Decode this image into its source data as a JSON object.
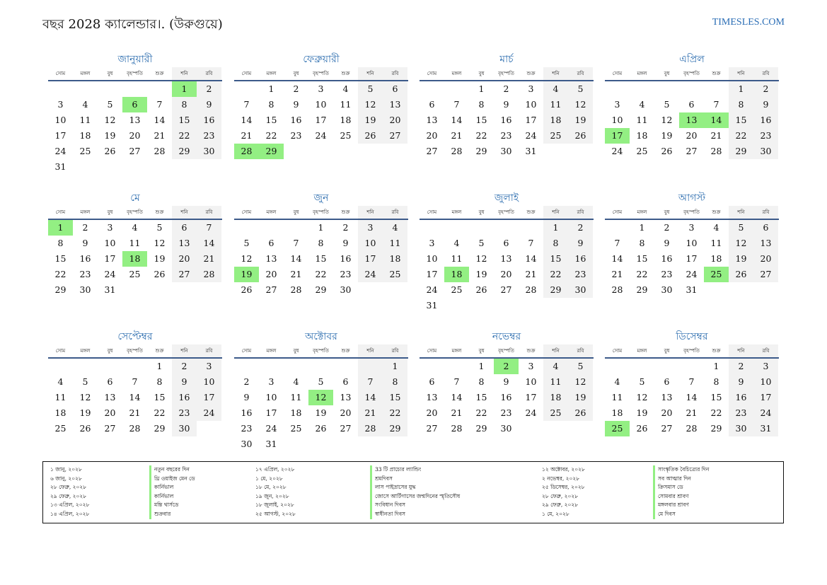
{
  "title": "বছর 2028 ক্যালেন্ডার।. (উরুগুয়ে)",
  "site": "TIMESLES.COM",
  "weekdays": [
    "সোম",
    "মঙ্গল",
    "বুধ",
    "বৃহস্পতি",
    "শুক্র",
    "শনি",
    "রবি"
  ],
  "colors": {
    "accent": "#2f6fb0",
    "holiday": "#93ef83",
    "weekend": "#f2f2f2"
  },
  "months": [
    {
      "name": "জানুয়ারী",
      "offset": 5,
      "days": 31,
      "holidays": [
        1,
        6
      ]
    },
    {
      "name": "ফেব্রুয়ারী",
      "offset": 1,
      "days": 29,
      "holidays": [
        28,
        29
      ]
    },
    {
      "name": "মার্চ",
      "offset": 2,
      "days": 31,
      "holidays": []
    },
    {
      "name": "এপ্রিল",
      "offset": 5,
      "days": 30,
      "holidays": [
        13,
        14,
        17
      ]
    },
    {
      "name": "মে",
      "offset": 0,
      "days": 31,
      "holidays": [
        1,
        18
      ]
    },
    {
      "name": "জুন",
      "offset": 3,
      "days": 30,
      "holidays": [
        19
      ]
    },
    {
      "name": "জুলাই",
      "offset": 5,
      "days": 31,
      "holidays": [
        18
      ]
    },
    {
      "name": "আগস্ট",
      "offset": 1,
      "days": 31,
      "holidays": [
        25
      ]
    },
    {
      "name": "সেপ্টেম্বর",
      "offset": 4,
      "days": 30,
      "holidays": []
    },
    {
      "name": "অক্টোবর",
      "offset": 6,
      "days": 31,
      "holidays": [
        12
      ]
    },
    {
      "name": "নভেম্বর",
      "offset": 2,
      "days": 30,
      "holidays": [
        2
      ]
    },
    {
      "name": "ডিসেম্বর",
      "offset": 4,
      "days": 31,
      "holidays": [
        25
      ]
    }
  ],
  "legend": [
    [
      {
        "date": "১ জানু, ২০২৮",
        "name": "নতুন বছরের দিন"
      },
      {
        "date": "৬ জানু, ২০২৮",
        "name": "থ্রি ওয়াইজ মেন ডে"
      },
      {
        "date": "২৮ ফেব্রু, ২০২৮",
        "name": "কার্নিভাল"
      },
      {
        "date": "২৯ ফেব্রু, ২০২৮",
        "name": "কার্নিভাল"
      },
      {
        "date": "১৩ এপ্রিল, ২০২৮",
        "name": "মন্তি থার্সডে"
      },
      {
        "date": "১৪ এপ্রিল, ২০২৮",
        "name": "শুক্রবার"
      }
    ],
    [
      {
        "date": "১৭ এপ্রিল, ২০২৮",
        "name": "33 টি প্রাচ্যের ল্যান্ডিং"
      },
      {
        "date": "১ মে, ২০২৮",
        "name": "শ্রমদিবস"
      },
      {
        "date": "১৮ মে, ২০২৮",
        "name": "লাস পাইদ্রাসের যুদ্ধ"
      },
      {
        "date": "১৯ জুন, ২০২৮",
        "name": "জোসে আর্টিগাসের জন্মদিনের স্মৃতিসৌধ"
      },
      {
        "date": "১৮ জুলাই, ২০২৮",
        "name": "সংবিধান দিবস"
      },
      {
        "date": "২৫ আগস্ট, ২০২৮",
        "name": "স্বাধীনতা দিবস"
      }
    ],
    [
      {
        "date": "১২ অক্টোবর, ২০২৮",
        "name": "সাংস্কৃতিক বৈচিত্র্যের দিন"
      },
      {
        "date": "২ নভেম্বর, ২০২৮",
        "name": "সব আত্মার দিন"
      },
      {
        "date": "২৫ ডিসেম্বর, ২০২৮",
        "name": "ক্রিসমাস ডে"
      },
      {
        "date": "২৮ ফেব্রু, ২০২৮",
        "name": "সোমবার শ্রাবণ"
      },
      {
        "date": "২৯ ফেব্রু, ২০২৮",
        "name": "মঙ্গলবার শ্রাবণ"
      },
      {
        "date": "১ মে, ২০২৮",
        "name": "মে দিবস"
      }
    ]
  ]
}
